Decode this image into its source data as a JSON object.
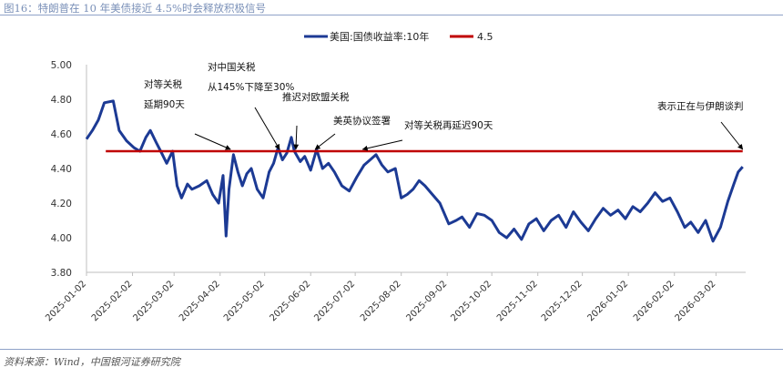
{
  "header": {
    "title": "图16：特朗普在 10 年美债接近 4.5%时会释放积极信号"
  },
  "footer": {
    "source": "资料来源：Wind，中国银河证券研究院"
  },
  "colors": {
    "series": "#1c3a94",
    "threshold": "#c00000",
    "rule": "#8fa2c8"
  },
  "chart_data": {
    "type": "line",
    "xlabel": "",
    "ylabel": "",
    "ylim": [
      3.8,
      5.0
    ],
    "yticks": [
      "5.00",
      "4.80",
      "4.60",
      "4.40",
      "4.20",
      "4.00",
      "3.80"
    ],
    "xticks": [
      "2025-01-02",
      "2025-02-02",
      "2025-03-02",
      "2025-04-02",
      "2025-05-02",
      "2025-06-02",
      "2025-07-02",
      "2025-08-02",
      "2025-09-02",
      "2025-10-02",
      "2025-11-02",
      "2025-12-02",
      "2026-01-02",
      "2026-02-02",
      "2026-03-02"
    ],
    "grid": false,
    "legend_position": "top",
    "series": [
      {
        "name": "美国:国债收益率:10年",
        "x": [
          "2025-01-02",
          "2025-01-06",
          "2025-01-10",
          "2025-01-14",
          "2025-01-20",
          "2025-01-24",
          "2025-01-29",
          "2025-02-03",
          "2025-02-07",
          "2025-02-11",
          "2025-02-14",
          "2025-02-18",
          "2025-02-21",
          "2025-02-25",
          "2025-03-01",
          "2025-03-04",
          "2025-03-07",
          "2025-03-11",
          "2025-03-14",
          "2025-03-19",
          "2025-03-24",
          "2025-03-28",
          "2025-04-01",
          "2025-04-04",
          "2025-04-06",
          "2025-04-08",
          "2025-04-11",
          "2025-04-14",
          "2025-04-17",
          "2025-04-20",
          "2025-04-23",
          "2025-04-27",
          "2025-05-01",
          "2025-05-05",
          "2025-05-08",
          "2025-05-11",
          "2025-05-14",
          "2025-05-17",
          "2025-05-20",
          "2025-05-22",
          "2025-05-26",
          "2025-05-29",
          "2025-06-02",
          "2025-06-06",
          "2025-06-10",
          "2025-06-14",
          "2025-06-18",
          "2025-06-23",
          "2025-06-28",
          "2025-07-03",
          "2025-07-08",
          "2025-07-12",
          "2025-07-16",
          "2025-07-20",
          "2025-07-24",
          "2025-07-29",
          "2025-08-02",
          "2025-08-06",
          "2025-08-10",
          "2025-08-14",
          "2025-08-18",
          "2025-08-22",
          "2025-08-28",
          "2025-09-03",
          "2025-09-08",
          "2025-09-12",
          "2025-09-17",
          "2025-09-22",
          "2025-09-27",
          "2025-10-02",
          "2025-10-07",
          "2025-10-12",
          "2025-10-17",
          "2025-10-22",
          "2025-10-27",
          "2025-11-01",
          "2025-11-06",
          "2025-11-11",
          "2025-11-16",
          "2025-11-21",
          "2025-11-26",
          "2025-12-01",
          "2025-12-06",
          "2025-12-11",
          "2025-12-16",
          "2025-12-21",
          "2025-12-26",
          "2025-12-31",
          "2026-01-05",
          "2026-01-10",
          "2026-01-15",
          "2026-01-20",
          "2026-01-25",
          "2026-01-30",
          "2026-02-04",
          "2026-02-09",
          "2026-02-13",
          "2026-02-18",
          "2026-02-23",
          "2026-02-28",
          "2026-03-05",
          "2026-03-10",
          "2026-03-14",
          "2026-03-17",
          "2026-03-20"
        ],
        "values": [
          4.57,
          4.62,
          4.68,
          4.78,
          4.79,
          4.62,
          4.56,
          4.52,
          4.5,
          4.58,
          4.62,
          4.55,
          4.5,
          4.43,
          4.5,
          4.3,
          4.23,
          4.31,
          4.28,
          4.3,
          4.33,
          4.25,
          4.2,
          4.36,
          4.01,
          4.28,
          4.48,
          4.38,
          4.3,
          4.37,
          4.4,
          4.28,
          4.23,
          4.38,
          4.43,
          4.52,
          4.45,
          4.49,
          4.58,
          4.5,
          4.44,
          4.47,
          4.39,
          4.51,
          4.4,
          4.43,
          4.38,
          4.3,
          4.27,
          4.35,
          4.42,
          4.45,
          4.48,
          4.42,
          4.38,
          4.4,
          4.23,
          4.25,
          4.28,
          4.33,
          4.3,
          4.26,
          4.2,
          4.08,
          4.1,
          4.12,
          4.06,
          4.14,
          4.13,
          4.1,
          4.03,
          4.0,
          4.05,
          3.99,
          4.08,
          4.11,
          4.04,
          4.1,
          4.13,
          4.06,
          4.15,
          4.09,
          4.04,
          4.11,
          4.17,
          4.13,
          4.16,
          4.11,
          4.18,
          4.15,
          4.2,
          4.26,
          4.21,
          4.23,
          4.15,
          4.06,
          4.09,
          4.03,
          4.1,
          3.98,
          4.06,
          4.21,
          4.31,
          4.38,
          4.41
        ]
      },
      {
        "name": "4.5",
        "x": [
          "2025-01-15",
          "2026-03-20"
        ],
        "values": [
          4.5,
          4.5
        ]
      }
    ],
    "annotations": [
      {
        "lines": [
          "对等关税",
          "延期90天"
        ],
        "target": "2025-04-09"
      },
      {
        "lines": [
          "对中国关税",
          "从145%下降至30%"
        ],
        "target": "2025-05-12"
      },
      {
        "lines": [
          "推迟对欧盟关税"
        ],
        "target": "2025-05-23"
      },
      {
        "lines": [
          "美英协议签署"
        ],
        "target": "2025-06-05"
      },
      {
        "lines": [
          "对等关税再延迟90天"
        ],
        "target": "2025-07-07"
      },
      {
        "lines": [
          "表示正在与伊朗谈判"
        ],
        "target": "2026-03-20"
      }
    ]
  }
}
